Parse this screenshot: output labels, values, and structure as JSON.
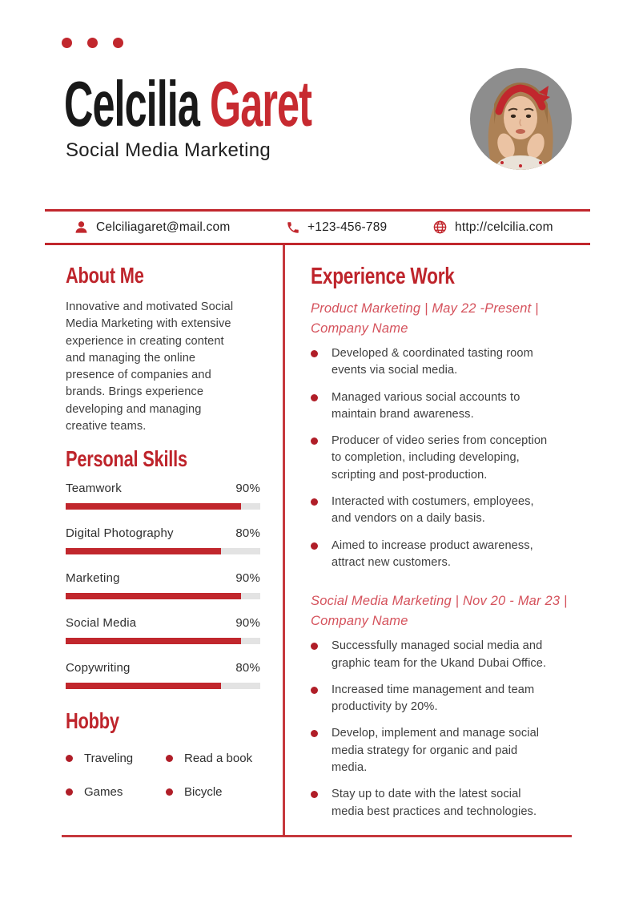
{
  "colors": {
    "accent": "#C1272D",
    "accent_light": "#D5525C",
    "accent_dark": "#B01E28"
  },
  "header": {
    "name_first": "Celcilia",
    "name_last": "Garet",
    "subtitle": "Social Media Marketing"
  },
  "contact": {
    "email": "Celciliagaret@mail.com",
    "phone": "+123-456-789",
    "website": "http://celcilia.com"
  },
  "about": {
    "title": "About Me",
    "text": "Innovative and motivated Social\nMedia Marketing with extensive\nexperience in creating content\nand managing the online\npresence of companies and\nbrands. Brings experience\ndeveloping and managing\ncreative teams."
  },
  "skills": {
    "title": "Personal Skills",
    "items": [
      {
        "label": "Teamwork",
        "percent": "90%",
        "value": 90
      },
      {
        "label": "Digital Photography",
        "percent": "80%",
        "value": 80
      },
      {
        "label": "Marketing",
        "percent": "90%",
        "value": 90
      },
      {
        "label": "Social Media",
        "percent": "90%",
        "value": 90
      },
      {
        "label": "Copywriting",
        "percent": "80%",
        "value": 80
      }
    ]
  },
  "hobby": {
    "title": "Hobby",
    "items": [
      "Traveling",
      "Read a book",
      "Games",
      "Bicycle"
    ]
  },
  "experience": {
    "title": "Experience Work",
    "jobs": [
      {
        "heading": "Product Marketing | May 22 -Present |\nCompany Name",
        "bullets": [
          "Developed & coordinated tasting room\nevents via social media.",
          "Managed various social accounts to\nmaintain brand awareness.",
          "Producer of video series from conception\nto completion, including developing,\nscripting and post-production.",
          "Interacted with costumers, employees,\nand vendors on a daily basis.",
          "Aimed to increase product awareness,\nattract new customers."
        ]
      },
      {
        "heading": "Social Media Marketing | Nov 20 - Mar 23 |\nCompany Name",
        "bullets": [
          "Successfully managed social media and\ngraphic team for the Ukand Dubai Office.",
          "Increased time management and team\nproductivity by 20%.",
          "Develop, implement and manage social\nmedia strategy for organic and paid\nmedia.",
          "Stay up to date with the latest social\nmedia best practices and technologies."
        ]
      }
    ]
  }
}
